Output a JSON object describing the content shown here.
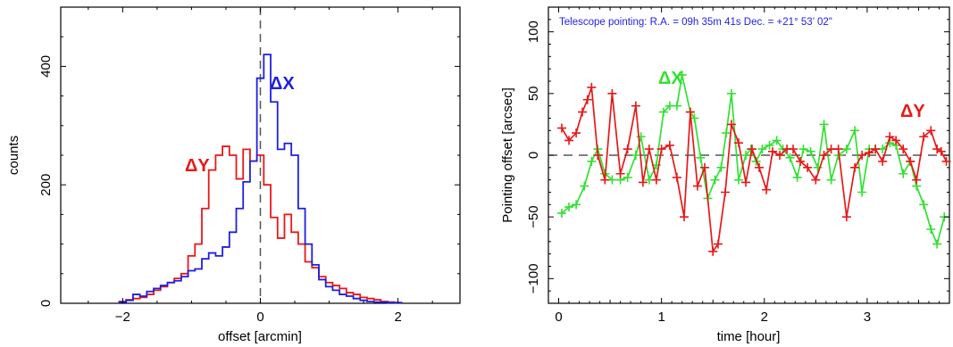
{
  "chart_data": [
    {
      "type": "histogram",
      "xlabel": "offset [arcmin]",
      "ylabel": "counts",
      "xlim": [
        -2.9,
        2.9
      ],
      "ylim": [
        0,
        500
      ],
      "xticks": [
        -2,
        0,
        2
      ],
      "xtick_labels": [
        "−2",
        "0",
        "2"
      ],
      "yticks": [
        0,
        200,
        400
      ],
      "ytick_labels": [
        "0",
        "200",
        "400"
      ],
      "reference_line": {
        "axis": "x",
        "value": 0,
        "style": "dashed",
        "color": "#555555"
      },
      "bin_width": 0.1,
      "series": [
        {
          "name": "ΔX",
          "color": "#1f1fe0",
          "x": [
            -2.0,
            -1.9,
            -1.8,
            -1.7,
            -1.6,
            -1.5,
            -1.4,
            -1.3,
            -1.2,
            -1.1,
            -1.0,
            -0.9,
            -0.8,
            -0.7,
            -0.6,
            -0.5,
            -0.4,
            -0.3,
            -0.2,
            -0.1,
            0.0,
            0.1,
            0.2,
            0.3,
            0.4,
            0.5,
            0.6,
            0.7,
            0.8,
            0.9,
            1.0,
            1.1,
            1.2,
            1.3,
            1.4,
            1.5,
            1.6,
            1.7,
            1.8,
            1.9,
            2.0
          ],
          "counts": [
            2,
            5,
            15,
            12,
            20,
            25,
            30,
            35,
            38,
            45,
            55,
            58,
            75,
            85,
            80,
            95,
            120,
            160,
            205,
            240,
            380,
            420,
            340,
            260,
            270,
            250,
            160,
            100,
            65,
            40,
            28,
            22,
            15,
            12,
            8,
            5,
            3,
            2,
            2,
            1,
            1
          ]
        },
        {
          "name": "ΔY",
          "color": "#e81818",
          "x": [
            -2.0,
            -1.9,
            -1.8,
            -1.7,
            -1.6,
            -1.5,
            -1.4,
            -1.3,
            -1.2,
            -1.1,
            -1.0,
            -0.9,
            -0.8,
            -0.7,
            -0.6,
            -0.5,
            -0.4,
            -0.3,
            -0.2,
            -0.1,
            0.0,
            0.1,
            0.2,
            0.3,
            0.4,
            0.5,
            0.6,
            0.7,
            0.8,
            0.9,
            1.0,
            1.1,
            1.2,
            1.3,
            1.4,
            1.5,
            1.6,
            1.7,
            1.8,
            1.9,
            2.0
          ],
          "counts": [
            3,
            6,
            8,
            10,
            15,
            22,
            28,
            35,
            42,
            50,
            80,
            100,
            160,
            225,
            250,
            265,
            250,
            210,
            260,
            240,
            250,
            200,
            145,
            110,
            150,
            120,
            100,
            70,
            60,
            45,
            35,
            30,
            25,
            18,
            15,
            10,
            8,
            6,
            3,
            2,
            1
          ]
        }
      ],
      "annotations": [
        {
          "text": "ΔX",
          "color": "#1f1fe0"
        },
        {
          "text": "ΔY",
          "color": "#e81818"
        }
      ]
    },
    {
      "type": "line",
      "xlabel": "time [hour]",
      "ylabel": "Pointing offset [arcsec]",
      "xlim": [
        -0.1,
        3.8
      ],
      "ylim": [
        -120,
        120
      ],
      "xticks": [
        0,
        1,
        2,
        3
      ],
      "xtick_labels": [
        "0",
        "1",
        "2",
        "3"
      ],
      "yticks": [
        -100,
        -50,
        0,
        50,
        100
      ],
      "ytick_labels": [
        "−100",
        "−50",
        "0",
        "50",
        "100"
      ],
      "reference_line": {
        "axis": "y",
        "value": 0,
        "style": "dashed",
        "color": "#555555"
      },
      "title_note": "Telescope pointing: R.A. = 09h 35m 41s  Dec. = +21° 53’ 02\"",
      "marker": "plus",
      "series": [
        {
          "name": "ΔX",
          "color": "#33e033",
          "x": [
            0.03,
            0.1,
            0.17,
            0.25,
            0.32,
            0.38,
            0.45,
            0.52,
            0.6,
            0.67,
            0.75,
            0.8,
            0.88,
            0.95,
            1.02,
            1.08,
            1.15,
            1.2,
            1.28,
            1.32,
            1.38,
            1.45,
            1.52,
            1.58,
            1.63,
            1.68,
            1.75,
            1.82,
            1.87,
            1.92,
            1.98,
            2.05,
            2.12,
            2.18,
            2.25,
            2.32,
            2.38,
            2.45,
            2.52,
            2.58,
            2.65,
            2.72,
            2.8,
            2.88,
            2.95,
            3.02,
            3.08,
            3.15,
            3.22,
            3.28,
            3.35,
            3.42,
            3.48,
            3.55,
            3.62,
            3.68,
            3.75
          ],
          "y": [
            -47,
            -42,
            -40,
            -25,
            -5,
            5,
            -15,
            -20,
            -20,
            -18,
            0,
            15,
            -20,
            -8,
            35,
            40,
            40,
            65,
            35,
            30,
            -2,
            -35,
            -20,
            -10,
            18,
            50,
            -20,
            0,
            5,
            -5,
            5,
            8,
            12,
            5,
            -2,
            -18,
            5,
            3,
            -10,
            25,
            -20,
            0,
            5,
            20,
            -30,
            5,
            5,
            5,
            10,
            8,
            -15,
            -5,
            -25,
            -40,
            -60,
            -72,
            -50
          ]
        },
        {
          "name": "ΔY",
          "color": "#e81818",
          "x": [
            0.03,
            0.1,
            0.17,
            0.23,
            0.28,
            0.32,
            0.38,
            0.45,
            0.52,
            0.6,
            0.67,
            0.75,
            0.82,
            0.88,
            0.95,
            1.0,
            1.08,
            1.15,
            1.22,
            1.28,
            1.35,
            1.42,
            1.5,
            1.55,
            1.62,
            1.68,
            1.75,
            1.82,
            1.88,
            1.95,
            2.02,
            2.08,
            2.15,
            2.22,
            2.28,
            2.35,
            2.42,
            2.5,
            2.58,
            2.65,
            2.72,
            2.8,
            2.88,
            2.95,
            3.02,
            3.08,
            3.15,
            3.22,
            3.28,
            3.35,
            3.42,
            3.48,
            3.55,
            3.62,
            3.68,
            3.72,
            3.77
          ],
          "y": [
            22,
            12,
            18,
            35,
            45,
            55,
            0,
            -20,
            50,
            -15,
            5,
            40,
            -22,
            5,
            -20,
            5,
            8,
            -18,
            -50,
            35,
            -25,
            -10,
            -78,
            -72,
            -30,
            25,
            10,
            -22,
            5,
            -10,
            -28,
            3,
            0,
            5,
            5,
            -5,
            -10,
            -20,
            0,
            5,
            5,
            -50,
            -10,
            0,
            2,
            5,
            -5,
            15,
            12,
            5,
            -5,
            -20,
            15,
            20,
            5,
            3,
            -5
          ]
        }
      ],
      "annotations": [
        {
          "text": "ΔX",
          "color": "#33e033"
        },
        {
          "text": "ΔY",
          "color": "#e81818"
        }
      ]
    }
  ]
}
